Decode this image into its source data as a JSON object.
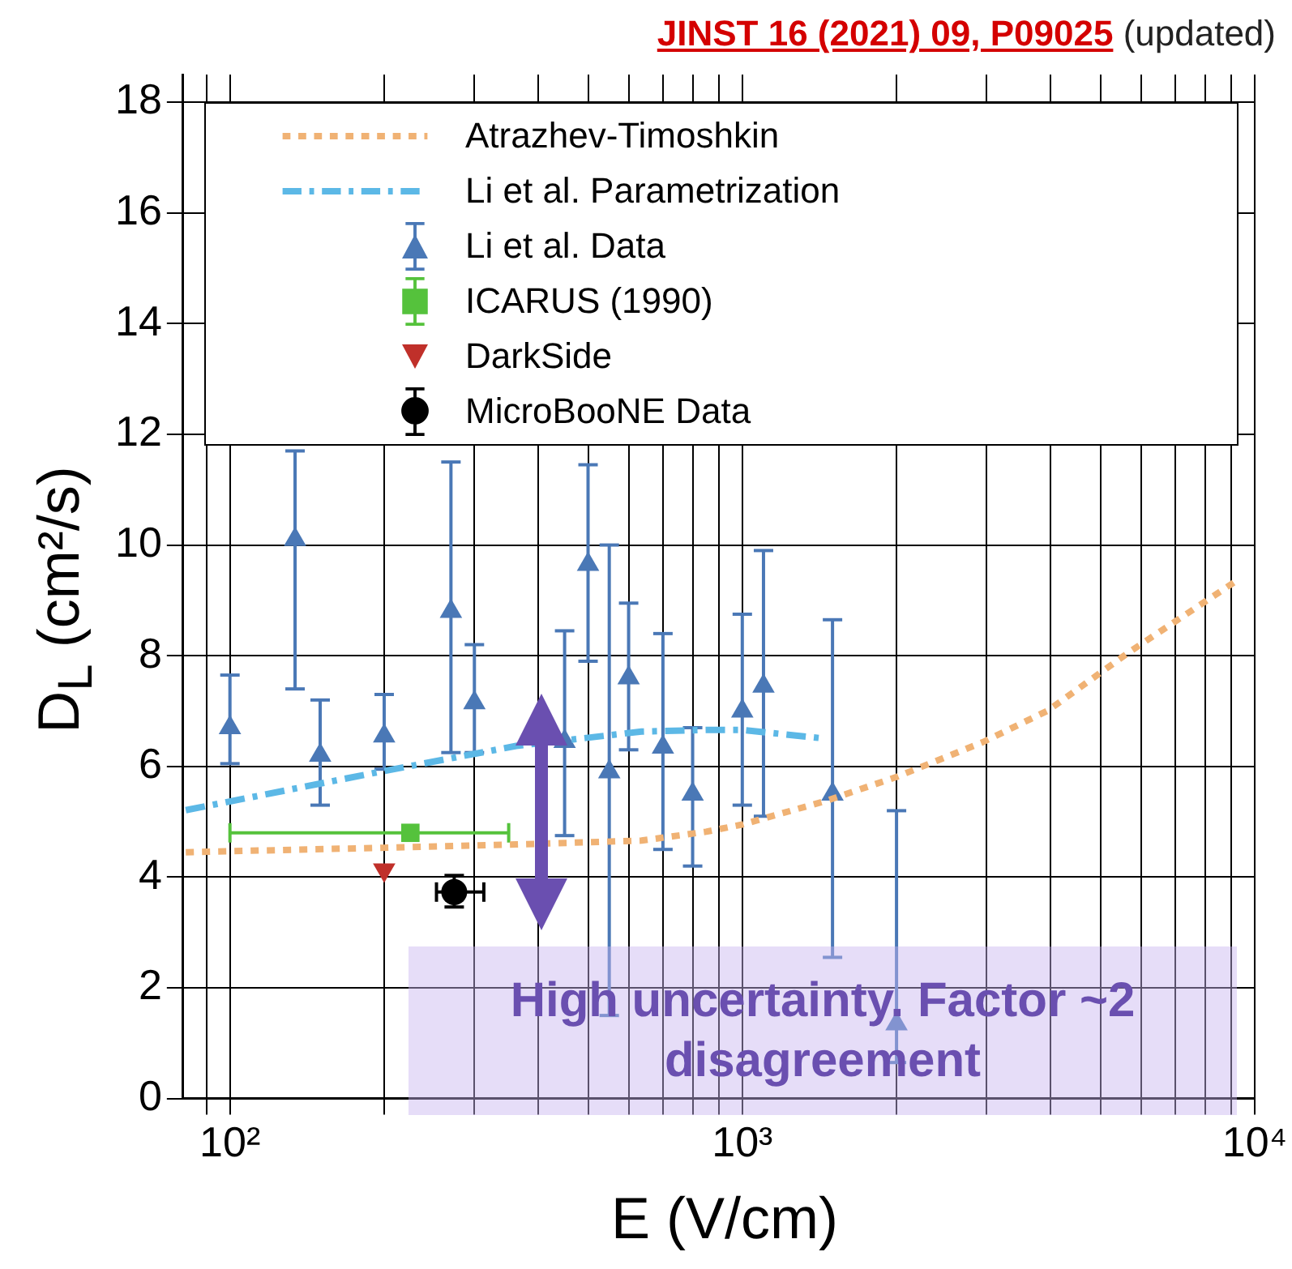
{
  "chart_data": {
    "type": "scatter",
    "title": "JINST 16 (2021) 09, P09025",
    "subtitle": "(updated)",
    "xlabel": "E (V/cm)",
    "ylabel": "D$_{L}$ (cm²/s)",
    "log": "x",
    "grid": true,
    "legend": "top",
    "xlim": [
      81,
      10000
    ],
    "ylim": [
      0,
      18.5
    ],
    "xticks": [
      {
        "value": 90,
        "label": null
      },
      {
        "value": 100,
        "label": "10²"
      },
      {
        "value": 200,
        "label": null
      },
      {
        "value": 300,
        "label": null
      },
      {
        "value": 400,
        "label": null
      },
      {
        "value": 500,
        "label": null
      },
      {
        "value": 600,
        "label": null
      },
      {
        "value": 700,
        "label": null
      },
      {
        "value": 800,
        "label": null
      },
      {
        "value": 900,
        "label": null
      },
      {
        "value": 1000,
        "label": "10³"
      },
      {
        "value": 2000,
        "label": null
      },
      {
        "value": 3000,
        "label": null
      },
      {
        "value": 4000,
        "label": null
      },
      {
        "value": 5000,
        "label": null
      },
      {
        "value": 6000,
        "label": null
      },
      {
        "value": 7000,
        "label": null
      },
      {
        "value": 8000,
        "label": null
      },
      {
        "value": 9000,
        "label": null
      },
      {
        "value": 10000,
        "label": "10⁴"
      }
    ],
    "yticks": [
      0,
      2,
      4,
      6,
      8,
      10,
      12,
      14,
      16,
      18
    ],
    "annotations": [
      "High uncertainty. Factor ~2 disagreement"
    ],
    "series": [
      {
        "name": "Atrazhev-Timoshkin",
        "type": "line",
        "line_style": "dotted",
        "marker": "none",
        "color": "#f0b274",
        "x": [
          82,
          198,
          362,
          636,
          850,
          1000,
          1460,
          2000,
          2950,
          3950,
          5700,
          9270
        ],
        "values": [
          4.45,
          4.53,
          4.59,
          4.66,
          4.82,
          4.95,
          5.38,
          5.81,
          6.44,
          7.01,
          8.07,
          9.37
        ]
      },
      {
        "name": "Li et al. Parametrization",
        "type": "line",
        "line_style": "dashed",
        "marker": "none",
        "color": "#5cb8e6",
        "x": [
          82,
          198,
          362,
          636,
          850,
          1000,
          1460
        ],
        "values": [
          5.21,
          5.91,
          6.37,
          6.63,
          6.66,
          6.66,
          6.5
        ]
      },
      {
        "name": "Li et al. Data",
        "type": "scatter",
        "marker": "triangle",
        "color": "#4a78b6",
        "x": [
          100,
          134,
          150,
          200,
          270,
          300,
          450,
          500,
          550,
          600,
          700,
          800,
          1000,
          1100,
          1500,
          2000
        ],
        "values": [
          6.7,
          10.1,
          6.2,
          6.55,
          8.8,
          7.15,
          6.45,
          9.65,
          5.9,
          7.6,
          6.35,
          5.5,
          7.0,
          7.45,
          5.5,
          1.35
        ],
        "errors": [
          [
            6.05,
            7.65
          ],
          [
            7.4,
            11.7
          ],
          [
            5.3,
            7.2
          ],
          [
            5.95,
            7.3
          ],
          [
            6.25,
            11.5
          ],
          [
            6.25,
            8.2
          ],
          [
            4.75,
            8.45
          ],
          [
            7.9,
            11.45
          ],
          [
            1.5,
            10.0
          ],
          [
            6.3,
            8.95
          ],
          [
            4.5,
            8.4
          ],
          [
            4.2,
            6.7
          ],
          [
            5.3,
            8.75
          ],
          [
            5.1,
            9.9
          ],
          [
            2.55,
            8.65
          ],
          [
            0.65,
            5.2
          ]
        ]
      },
      {
        "name": "ICARUS (1990)",
        "type": "scatter",
        "marker": "square",
        "color": "#55c23c",
        "x": [
          225
        ],
        "values": [
          4.8
        ],
        "xerrors": [
          [
            100,
            350
          ]
        ]
      },
      {
        "name": "DarkSide",
        "type": "scatter",
        "marker": "triangle-down",
        "color": "#c0302a",
        "x": [
          200
        ],
        "values": [
          4.13
        ]
      },
      {
        "name": "MicroBooNE Data",
        "type": "scatter",
        "marker": "circle",
        "color": "#000000",
        "x": [
          274
        ],
        "values": [
          3.73
        ],
        "errors": [
          [
            3.46,
            4.03
          ]
        ],
        "xerrors": [
          [
            253,
            313
          ]
        ]
      }
    ]
  }
}
